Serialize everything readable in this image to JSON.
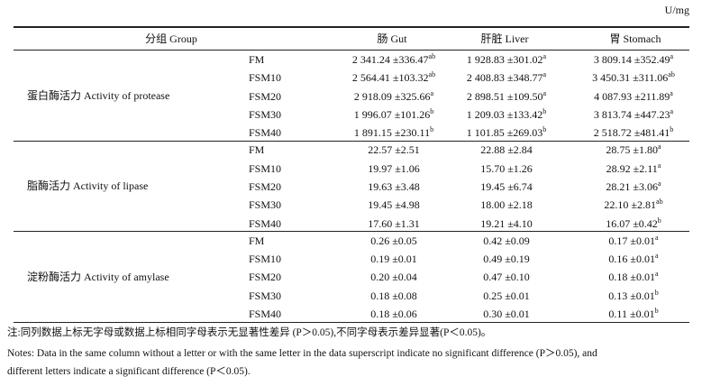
{
  "unit": "U/mg",
  "table": {
    "header": [
      "分组 Group",
      "肠 Gut",
      "肝脏 Liver",
      "胃 Stomach"
    ],
    "groups": [
      {
        "label": "蛋白酶活力 Activity of protease",
        "rows": [
          {
            "diet": "FM",
            "cells": [
              {
                "value": "2 341.24 ±336.47",
                "sup": "ab"
              },
              {
                "value": "1 928.83 ±301.02",
                "sup": "a"
              },
              {
                "value": "3 809.14 ±352.49",
                "sup": "a"
              }
            ]
          },
          {
            "diet": "FSM10",
            "cells": [
              {
                "value": "2 564.41 ±103.32",
                "sup": "ab"
              },
              {
                "value": "2 408.83 ±348.77",
                "sup": "a"
              },
              {
                "value": "3 450.31 ±311.06",
                "sup": "ab"
              }
            ]
          },
          {
            "diet": "FSM20",
            "cells": [
              {
                "value": "2 918.09 ±325.66",
                "sup": "a"
              },
              {
                "value": "2 898.51 ±109.50",
                "sup": "a"
              },
              {
                "value": "4 087.93 ±211.89",
                "sup": "a"
              }
            ]
          },
          {
            "diet": "FSM30",
            "cells": [
              {
                "value": "1 996.07 ±101.26",
                "sup": "b"
              },
              {
                "value": "1 209.03 ±133.42",
                "sup": "b"
              },
              {
                "value": "3 813.74 ±447.23",
                "sup": "a"
              }
            ]
          },
          {
            "diet": "FSM40",
            "cells": [
              {
                "value": "1 891.15 ±230.11",
                "sup": "b"
              },
              {
                "value": "1 101.85 ±269.03",
                "sup": "b"
              },
              {
                "value": "2 518.72 ±481.41",
                "sup": "b"
              }
            ]
          }
        ]
      },
      {
        "label": "脂酶活力 Activity of lipase",
        "rows": [
          {
            "diet": "FM",
            "cells": [
              {
                "value": "22.57 ±2.51"
              },
              {
                "value": "22.88 ±2.84"
              },
              {
                "value": "28.75 ±1.80",
                "sup": "a"
              }
            ]
          },
          {
            "diet": "FSM10",
            "cells": [
              {
                "value": "19.97 ±1.06"
              },
              {
                "value": "15.70 ±1.26"
              },
              {
                "value": "28.92 ±2.11",
                "sup": "a"
              }
            ]
          },
          {
            "diet": "FSM20",
            "cells": [
              {
                "value": "19.63 ±3.48"
              },
              {
                "value": "19.45 ±6.74"
              },
              {
                "value": "28.21 ±3.06",
                "sup": "a"
              }
            ]
          },
          {
            "diet": "FSM30",
            "cells": [
              {
                "value": "19.45 ±4.98"
              },
              {
                "value": "18.00 ±2.18"
              },
              {
                "value": "22.10 ±2.81",
                "sup": "ab"
              }
            ]
          },
          {
            "diet": "FSM40",
            "cells": [
              {
                "value": "17.60 ±1.31"
              },
              {
                "value": "19.21 ±4.10"
              },
              {
                "value": "16.07 ±0.42",
                "sup": "b"
              }
            ]
          }
        ]
      },
      {
        "label": "淀粉酶活力 Activity of amylase",
        "rows": [
          {
            "diet": "FM",
            "cells": [
              {
                "value": "0.26 ±0.05"
              },
              {
                "value": "0.42 ±0.09"
              },
              {
                "value": "0.17 ±0.01",
                "sup": "a"
              }
            ]
          },
          {
            "diet": "FSM10",
            "cells": [
              {
                "value": "0.19 ±0.01"
              },
              {
                "value": "0.49 ±0.19"
              },
              {
                "value": "0.16 ±0.01",
                "sup": "a"
              }
            ]
          },
          {
            "diet": "FSM20",
            "cells": [
              {
                "value": "0.20 ±0.04"
              },
              {
                "value": "0.47 ±0.10"
              },
              {
                "value": "0.18 ±0.01",
                "sup": "a"
              }
            ]
          },
          {
            "diet": "FSM30",
            "cells": [
              {
                "value": "0.18 ±0.08"
              },
              {
                "value": "0.25 ±0.01"
              },
              {
                "value": "0.13 ±0.01",
                "sup": "b"
              }
            ]
          },
          {
            "diet": "FSM40",
            "cells": [
              {
                "value": "0.18 ±0.06"
              },
              {
                "value": "0.30 ±0.01"
              },
              {
                "value": "0.11 ±0.01",
                "sup": "b"
              }
            ]
          }
        ]
      }
    ]
  },
  "notes": [
    "注:同列数据上标无字母或数据上标相同字母表示无显著性差异 (P＞0.05),不同字母表示差异显著(P＜0.05)。",
    "Notes: Data in the same column without a letter or with the same letter in the data superscript indicate no significant difference (P＞0.05), and",
    "different letters indicate a significant difference (P＜0.05)."
  ]
}
